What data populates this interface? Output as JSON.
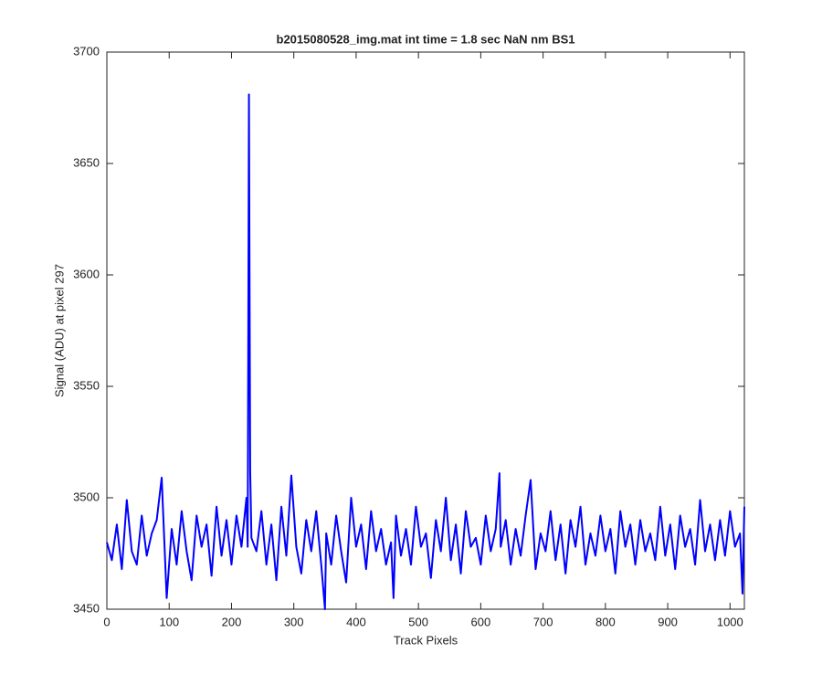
{
  "chart_data": {
    "type": "line",
    "title": "b2015080528_img.mat int time = 1.8 sec  NaN nm BS1",
    "xlabel": "Track Pixels",
    "ylabel": "Signal (ADU) at pixel 297",
    "xlim": [
      0,
      1023
    ],
    "ylim": [
      3450,
      3700
    ],
    "xticks": [
      0,
      100,
      200,
      300,
      400,
      500,
      600,
      700,
      800,
      900,
      1000
    ],
    "yticks": [
      3450,
      3500,
      3550,
      3600,
      3650,
      3700
    ],
    "grid": false,
    "series": [
      {
        "color": "#0000ff",
        "x": [
          0,
          8,
          16,
          24,
          32,
          40,
          48,
          56,
          64,
          72,
          80,
          88,
          96,
          104,
          112,
          120,
          128,
          136,
          144,
          152,
          160,
          168,
          176,
          184,
          192,
          200,
          208,
          216,
          224,
          226,
          228,
          230,
          232,
          240,
          248,
          256,
          264,
          272,
          280,
          288,
          296,
          304,
          312,
          320,
          328,
          336,
          344,
          350,
          352,
          360,
          368,
          376,
          384,
          392,
          400,
          408,
          416,
          424,
          432,
          440,
          448,
          456,
          460,
          464,
          472,
          480,
          488,
          496,
          504,
          512,
          520,
          528,
          536,
          544,
          552,
          560,
          568,
          576,
          584,
          592,
          600,
          608,
          616,
          624,
          630,
          632,
          640,
          648,
          656,
          664,
          672,
          680,
          688,
          696,
          704,
          712,
          720,
          728,
          736,
          744,
          752,
          760,
          768,
          776,
          784,
          792,
          800,
          808,
          816,
          824,
          832,
          840,
          848,
          856,
          864,
          872,
          880,
          888,
          896,
          904,
          912,
          920,
          928,
          936,
          944,
          952,
          960,
          968,
          976,
          984,
          992,
          1000,
          1008,
          1016,
          1020,
          1023
        ],
        "values": [
          3480,
          3472,
          3488,
          3468,
          3499,
          3476,
          3470,
          3492,
          3474,
          3484,
          3490,
          3509,
          3455,
          3486,
          3470,
          3494,
          3476,
          3463,
          3492,
          3478,
          3488,
          3465,
          3496,
          3474,
          3490,
          3470,
          3492,
          3478,
          3500,
          3478,
          3681,
          3512,
          3482,
          3476,
          3494,
          3470,
          3488,
          3463,
          3496,
          3474,
          3510,
          3478,
          3466,
          3490,
          3476,
          3494,
          3470,
          3450,
          3484,
          3470,
          3492,
          3476,
          3462,
          3500,
          3478,
          3488,
          3468,
          3494,
          3476,
          3486,
          3470,
          3480,
          3455,
          3492,
          3474,
          3486,
          3470,
          3496,
          3478,
          3484,
          3464,
          3490,
          3476,
          3500,
          3472,
          3488,
          3466,
          3494,
          3478,
          3482,
          3470,
          3492,
          3476,
          3486,
          3511,
          3478,
          3490,
          3470,
          3486,
          3474,
          3492,
          3508,
          3468,
          3484,
          3476,
          3494,
          3472,
          3488,
          3466,
          3490,
          3478,
          3496,
          3470,
          3484,
          3474,
          3492,
          3476,
          3486,
          3466,
          3494,
          3478,
          3488,
          3470,
          3490,
          3476,
          3484,
          3472,
          3496,
          3474,
          3488,
          3468,
          3492,
          3478,
          3486,
          3470,
          3499,
          3476,
          3488,
          3472,
          3490,
          3474,
          3494,
          3478,
          3484,
          3457,
          3496
        ]
      }
    ]
  }
}
